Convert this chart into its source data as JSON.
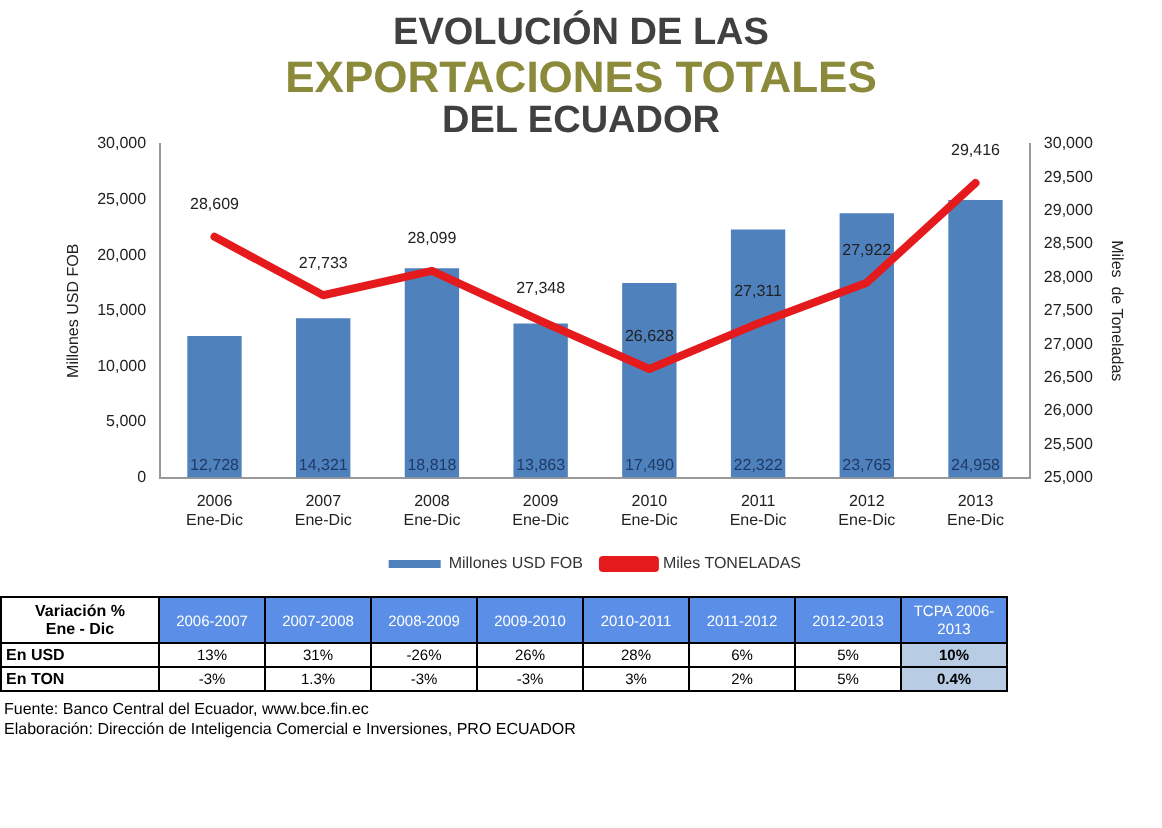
{
  "chart_data": [
    {
      "type": "bar",
      "title": "EVOLUCIÓN DE LAS\nEXPORTACIONES TOTALES\nDEL ECUADOR",
      "categories": [
        "2006 Ene-Dic",
        "2007 Ene-Dic",
        "2008 Ene-Dic",
        "2009 Ene-Dic",
        "2010 Ene-Dic",
        "2011 Ene-Dic",
        "2012 Ene-Dic",
        "2013 Ene-Dic"
      ],
      "series": [
        {
          "name": "Millones USD FOB",
          "color": "#4f81bd",
          "values": [
            12728,
            14321,
            18818,
            13863,
            17490,
            22322,
            23765,
            24958
          ],
          "value_labels": [
            "12,728",
            "14,321",
            "18,818",
            "13,863",
            "17,490",
            "22,322",
            "23,765",
            "24,958"
          ]
        },
        {
          "name": "Miles TONELADAS",
          "type": "line",
          "axis": "y2",
          "color": "#e41a1c",
          "values": [
            28609,
            27733,
            28099,
            27348,
            26628,
            27311,
            27922,
            29416
          ],
          "value_labels": [
            "28,609",
            "27,733",
            "28,099",
            "27,348",
            "26,628",
            "27,311",
            "27,922",
            "29,416"
          ]
        }
      ],
      "ylabel": "Millones USD FOB",
      "y2label": "Miles  de Toneladas",
      "ylim": [
        0,
        30000
      ],
      "yticks": [
        {
          "value": 0,
          "label": "0"
        },
        {
          "value": 5000,
          "label": "5,000"
        },
        {
          "value": 10000,
          "label": "10,000"
        },
        {
          "value": 15000,
          "label": "15,000"
        },
        {
          "value": 20000,
          "label": "20,000"
        },
        {
          "value": 25000,
          "label": "25,000"
        },
        {
          "value": 30000,
          "label": "30,000"
        }
      ],
      "y2lim": [
        25000,
        30000
      ],
      "y2ticks": [
        {
          "value": 25000,
          "label": "25,000"
        },
        {
          "value": 25500,
          "label": "25,500"
        },
        {
          "value": 26000,
          "label": "26,000"
        },
        {
          "value": 26500,
          "label": "26,500"
        },
        {
          "value": 27000,
          "label": "27,000"
        },
        {
          "value": 27500,
          "label": "27,500"
        },
        {
          "value": 28000,
          "label": "28,000"
        },
        {
          "value": 28500,
          "label": "28,500"
        },
        {
          "value": 29000,
          "label": "29,000"
        },
        {
          "value": 29500,
          "label": "29,500"
        },
        {
          "value": 30000,
          "label": "30,000"
        }
      ],
      "legend": "bottom",
      "grid": false,
      "marker": "none",
      "annotations": [
        "Fuente: Banco Central del Ecuador, www.bce.fin.ec",
        "Elaboración: Dirección de Inteligencia Comercial e Inversiones, PRO ECUADOR"
      ]
    },
    {
      "type": "other",
      "title": "Variación %\nEne - Dic",
      "categories": [
        "2006-2007",
        "2007-2008",
        "2008-2009",
        "2009-2010",
        "2010-2011",
        "2011-2012",
        "2012-2013",
        "TCPA 2006-2013"
      ],
      "y_categories": [
        "En USD",
        "En TON"
      ],
      "cell_labels": [
        [
          "13%",
          "31%",
          "-26%",
          "26%",
          "28%",
          "6%",
          "5%",
          "10%"
        ],
        [
          "-3%",
          "1.3%",
          "-3%",
          "-3%",
          "3%",
          "2%",
          "5%",
          "0.4%"
        ]
      ]
    }
  ]
}
